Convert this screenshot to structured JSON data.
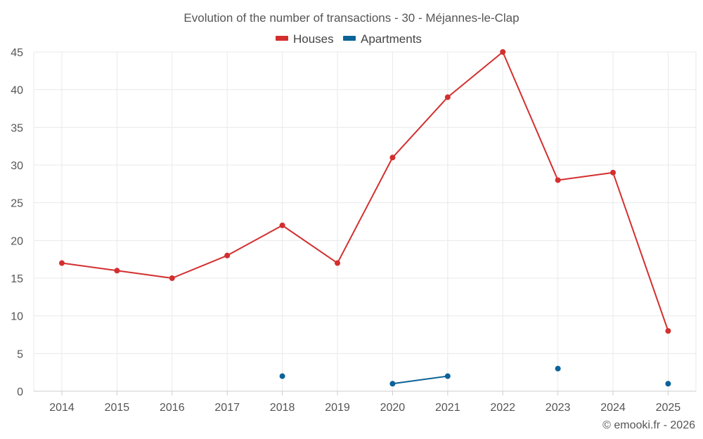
{
  "chart_data": {
    "type": "line",
    "title": "Evolution of the number of transactions - 30 - Méjannes-le-Clap",
    "categories": [
      "2014",
      "2015",
      "2016",
      "2017",
      "2018",
      "2019",
      "2020",
      "2021",
      "2022",
      "2023",
      "2024",
      "2025"
    ],
    "ylim": [
      0,
      45
    ],
    "yticks": [
      0,
      5,
      10,
      15,
      20,
      25,
      30,
      35,
      40,
      45
    ],
    "grid": true,
    "legend_position": "top-center",
    "series": [
      {
        "name": "Houses",
        "color": "#d32f2f",
        "values": [
          17,
          16,
          15,
          18,
          22,
          17,
          31,
          39,
          45,
          28,
          29,
          8
        ]
      },
      {
        "name": "Apartments",
        "color": "#0b6398",
        "values": [
          null,
          null,
          null,
          null,
          2,
          null,
          1,
          2,
          null,
          3,
          null,
          1
        ]
      }
    ]
  },
  "credit": "© emooki.fr - 2026"
}
